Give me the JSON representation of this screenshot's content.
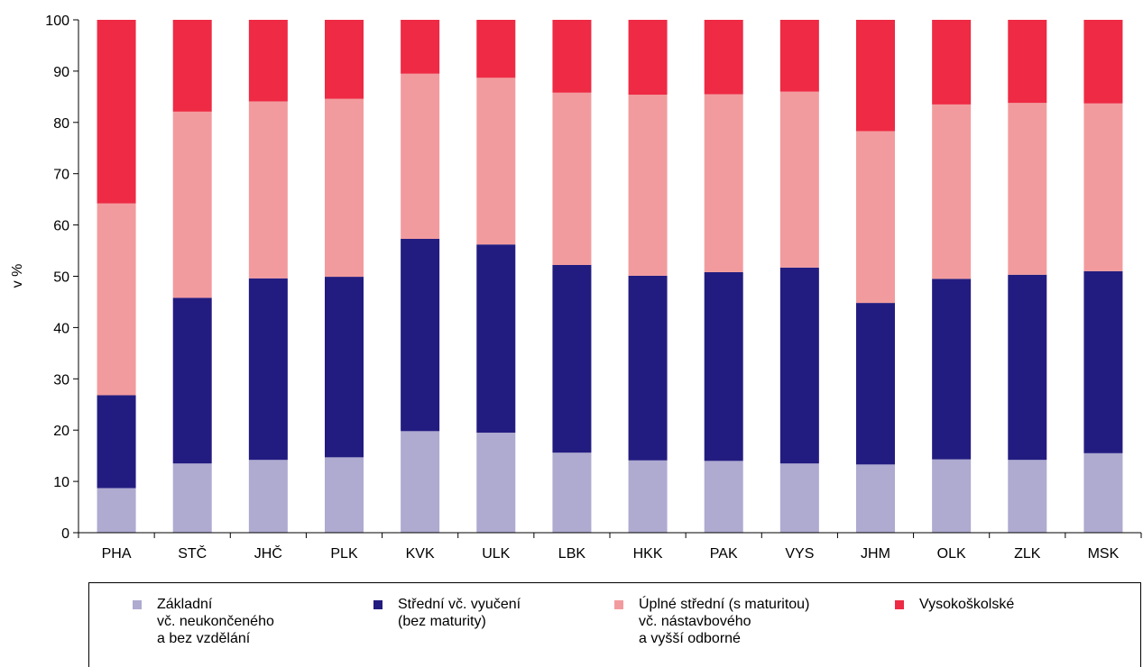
{
  "chart_data": {
    "type": "bar",
    "stacked": true,
    "ylabel": "v %",
    "ylim": [
      0,
      100
    ],
    "yticks": [
      0,
      10,
      20,
      30,
      40,
      50,
      60,
      70,
      80,
      90,
      100
    ],
    "categories": [
      "PHA",
      "STČ",
      "JHČ",
      "PLK",
      "KVK",
      "ULK",
      "LBK",
      "HKK",
      "PAK",
      "VYS",
      "JHM",
      "OLK",
      "ZLK",
      "MSK"
    ],
    "series": [
      {
        "name": "Základní\nvč. neukončeného\na bez vzdělání",
        "color": "#aeaad0",
        "values": [
          8.7,
          13.5,
          14.2,
          14.7,
          19.8,
          19.5,
          15.6,
          14.1,
          14.0,
          13.5,
          13.3,
          14.3,
          14.2,
          15.5
        ]
      },
      {
        "name": "Střední vč. vyučení\n(bez maturity)",
        "color": "#231c80",
        "values": [
          18.1,
          32.3,
          35.4,
          35.2,
          37.5,
          36.7,
          36.6,
          36.0,
          36.8,
          38.2,
          31.5,
          35.2,
          36.1,
          35.5
        ]
      },
      {
        "name": "Úplné střední (s maturitou)\nvč. nástavbového\na vyšší odborné",
        "color": "#f29b9e",
        "values": [
          37.4,
          36.3,
          34.5,
          34.7,
          32.2,
          32.5,
          33.6,
          35.3,
          34.7,
          34.3,
          33.5,
          34.0,
          33.5,
          32.7
        ]
      },
      {
        "name": "Vysokoškolské",
        "color": "#ee2a44",
        "values": [
          35.8,
          17.9,
          15.9,
          15.4,
          10.5,
          11.3,
          14.2,
          14.6,
          14.5,
          14.0,
          21.7,
          16.5,
          16.2,
          16.3
        ]
      }
    ],
    "grid": false,
    "legend": "bottom"
  }
}
